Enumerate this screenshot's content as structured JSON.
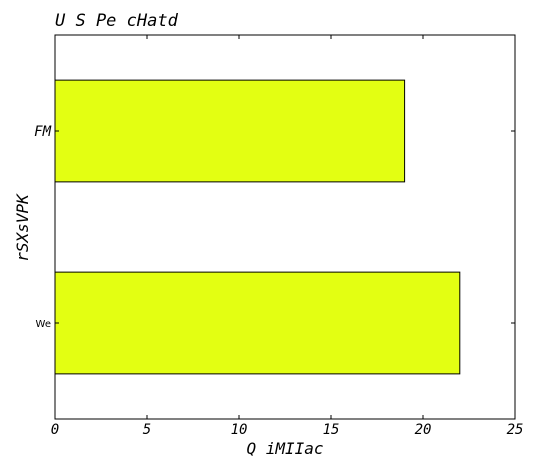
{
  "chart_data": {
    "type": "bar",
    "orientation": "horizontal",
    "title": "U S Pe  cHatd",
    "xlabel": "Q iMIIac",
    "ylabel": "rSXsVPK",
    "categories": [
      "FM",
      "We"
    ],
    "values": [
      19,
      22
    ],
    "xlim": [
      0,
      25
    ],
    "xticks": [
      "0",
      "5",
      "10",
      "15",
      "20",
      "25"
    ],
    "grid": false,
    "bar_color": "#e3ff12",
    "edge_color": "#000000"
  }
}
